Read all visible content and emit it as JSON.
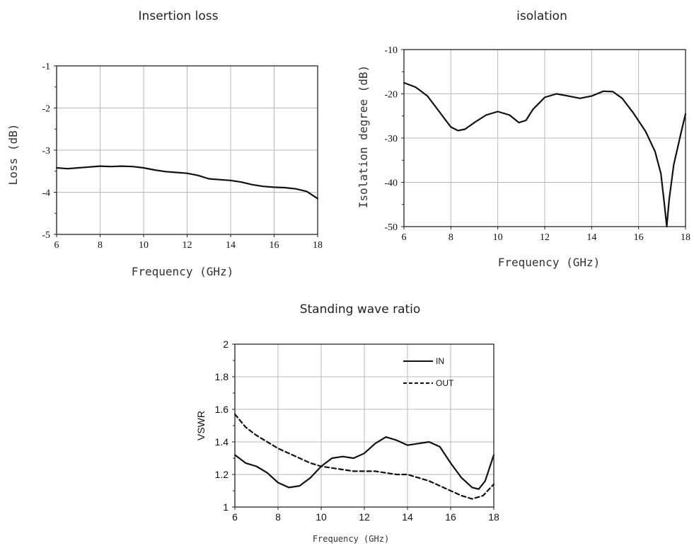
{
  "chart_data": [
    {
      "id": "insertion",
      "type": "line",
      "title": "Insertion loss",
      "xlabel": "Frequency (GHz)",
      "ylabel": "Loss (dB)",
      "xlim": [
        6,
        18
      ],
      "ylim": [
        -5,
        -1
      ],
      "xticks": [
        6,
        8,
        10,
        12,
        14,
        16,
        18
      ],
      "yticks": [
        -1,
        -2,
        -3,
        -4,
        -5
      ],
      "grid": true,
      "series": [
        {
          "style": "solid",
          "x": [
            6,
            6.5,
            7,
            7.5,
            8,
            8.5,
            9,
            9.5,
            10,
            10.5,
            11,
            11.5,
            12,
            12.5,
            13,
            13.5,
            14,
            14.5,
            15,
            15.5,
            16,
            16.5,
            17,
            17.5,
            18
          ],
          "y": [
            -3.42,
            -3.44,
            -3.42,
            -3.4,
            -3.38,
            -3.39,
            -3.38,
            -3.39,
            -3.42,
            -3.47,
            -3.51,
            -3.53,
            -3.55,
            -3.6,
            -3.68,
            -3.7,
            -3.72,
            -3.76,
            -3.82,
            -3.86,
            -3.88,
            -3.89,
            -3.92,
            -3.98,
            -4.15
          ]
        }
      ]
    },
    {
      "id": "isolation",
      "type": "line",
      "title": "isolation",
      "xlabel": "Frequency (GHz)",
      "ylabel": "Isolation degree (dB)",
      "xlim": [
        6,
        18
      ],
      "ylim": [
        -50,
        -10
      ],
      "xticks": [
        6,
        8,
        10,
        12,
        14,
        16,
        18
      ],
      "yticks": [
        -10,
        -20,
        -30,
        -40,
        -50
      ],
      "grid": true,
      "series": [
        {
          "style": "solid",
          "x": [
            6,
            6.5,
            7,
            7.5,
            8,
            8.3,
            8.6,
            9,
            9.5,
            10,
            10.5,
            10.9,
            11.2,
            11.5,
            12,
            12.5,
            13,
            13.5,
            14,
            14.5,
            14.9,
            15.3,
            15.8,
            16.3,
            16.7,
            16.95,
            17.1,
            17.2,
            17.3,
            17.5,
            17.8,
            18
          ],
          "y": [
            -17.5,
            -18.5,
            -20.5,
            -24,
            -27.5,
            -28.3,
            -28,
            -26.5,
            -24.8,
            -24,
            -24.8,
            -26.5,
            -26,
            -23.5,
            -20.8,
            -20,
            -20.5,
            -21,
            -20.5,
            -19.4,
            -19.5,
            -21,
            -24.5,
            -28.5,
            -33,
            -38,
            -45,
            -50,
            -44,
            -36,
            -29,
            -24.5
          ]
        }
      ]
    },
    {
      "id": "vswr",
      "type": "line",
      "title": "Standing wave ratio",
      "xlabel": "Frequency (GHz)",
      "ylabel": "VSWR",
      "xlim": [
        6,
        18
      ],
      "ylim": [
        1,
        2
      ],
      "xticks": [
        6,
        8,
        10,
        12,
        14,
        16,
        18
      ],
      "yticks": [
        1,
        1.2,
        1.4,
        1.6,
        1.8,
        2
      ],
      "grid": true,
      "legend": "top-right",
      "series": [
        {
          "name": "IN",
          "style": "solid",
          "x": [
            6,
            6.5,
            7,
            7.5,
            8,
            8.5,
            9,
            9.5,
            10,
            10.5,
            11,
            11.5,
            12,
            12.5,
            13,
            13.5,
            14,
            14.5,
            15,
            15.5,
            16,
            16.5,
            17,
            17.3,
            17.6,
            18
          ],
          "y": [
            1.32,
            1.27,
            1.25,
            1.21,
            1.15,
            1.12,
            1.13,
            1.18,
            1.25,
            1.3,
            1.31,
            1.3,
            1.33,
            1.39,
            1.43,
            1.41,
            1.38,
            1.39,
            1.4,
            1.37,
            1.27,
            1.18,
            1.12,
            1.11,
            1.16,
            1.32
          ]
        },
        {
          "name": "OUT",
          "style": "dashed",
          "x": [
            6,
            6.5,
            7,
            7.5,
            8,
            8.5,
            9,
            9.5,
            10,
            10.5,
            11,
            11.5,
            12,
            12.5,
            13,
            13.5,
            14,
            14.5,
            15,
            15.5,
            16,
            16.5,
            17,
            17.5,
            18
          ],
          "y": [
            1.57,
            1.49,
            1.44,
            1.4,
            1.36,
            1.33,
            1.3,
            1.27,
            1.25,
            1.24,
            1.23,
            1.22,
            1.22,
            1.22,
            1.21,
            1.2,
            1.2,
            1.18,
            1.16,
            1.13,
            1.1,
            1.07,
            1.05,
            1.07,
            1.14
          ]
        }
      ]
    }
  ]
}
